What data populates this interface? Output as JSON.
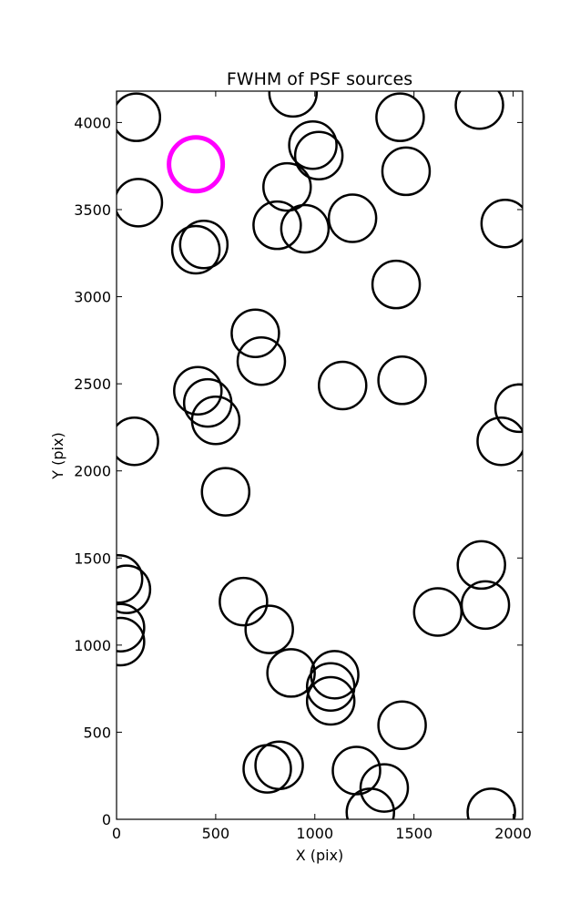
{
  "chart_data": {
    "type": "scatter",
    "title": "FWHM of PSF sources",
    "xlabel": "X (pix)",
    "ylabel": "Y (pix)",
    "xlim": [
      0,
      2048
    ],
    "ylim": [
      0,
      4180
    ],
    "xticks": [
      0,
      500,
      1000,
      1500,
      2000
    ],
    "yticks": [
      0,
      500,
      1000,
      1500,
      2000,
      2500,
      3000,
      3500,
      4000
    ],
    "grid": false,
    "colors": {
      "sources": "#000000",
      "highlight": "#ff00ff"
    },
    "series": [
      {
        "marker": "circle",
        "color": "#000000",
        "points": [
          {
            "x": 100,
            "y": 4030
          },
          {
            "x": 890,
            "y": 4170
          },
          {
            "x": 990,
            "y": 3870
          },
          {
            "x": 1020,
            "y": 3810
          },
          {
            "x": 1430,
            "y": 4030
          },
          {
            "x": 1830,
            "y": 4100
          },
          {
            "x": 110,
            "y": 3540
          },
          {
            "x": 860,
            "y": 3630
          },
          {
            "x": 1460,
            "y": 3720
          },
          {
            "x": 810,
            "y": 3410
          },
          {
            "x": 950,
            "y": 3390
          },
          {
            "x": 1190,
            "y": 3450
          },
          {
            "x": 1960,
            "y": 3420
          },
          {
            "x": 440,
            "y": 3300
          },
          {
            "x": 400,
            "y": 3270
          },
          {
            "x": 1410,
            "y": 3070
          },
          {
            "x": 700,
            "y": 2790
          },
          {
            "x": 730,
            "y": 2630
          },
          {
            "x": 410,
            "y": 2460
          },
          {
            "x": 460,
            "y": 2390
          },
          {
            "x": 500,
            "y": 2290
          },
          {
            "x": 1140,
            "y": 2490
          },
          {
            "x": 1440,
            "y": 2520
          },
          {
            "x": 2030,
            "y": 2360
          },
          {
            "x": 90,
            "y": 2170
          },
          {
            "x": 1940,
            "y": 2170
          },
          {
            "x": 550,
            "y": 1880
          },
          {
            "x": 10,
            "y": 1380
          },
          {
            "x": 50,
            "y": 1320
          },
          {
            "x": 1840,
            "y": 1460
          },
          {
            "x": 640,
            "y": 1250
          },
          {
            "x": 1620,
            "y": 1190
          },
          {
            "x": 1860,
            "y": 1230
          },
          {
            "x": 20,
            "y": 1100
          },
          {
            "x": 20,
            "y": 1020
          },
          {
            "x": 770,
            "y": 1090
          },
          {
            "x": 880,
            "y": 840
          },
          {
            "x": 1100,
            "y": 830
          },
          {
            "x": 1080,
            "y": 760
          },
          {
            "x": 1080,
            "y": 680
          },
          {
            "x": 1440,
            "y": 540
          },
          {
            "x": 760,
            "y": 290
          },
          {
            "x": 820,
            "y": 310
          },
          {
            "x": 1210,
            "y": 280
          },
          {
            "x": 1350,
            "y": 180
          },
          {
            "x": 1280,
            "y": 40
          },
          {
            "x": 1890,
            "y": 40
          }
        ]
      },
      {
        "marker": "circle",
        "color": "#ff00ff",
        "points": [
          {
            "x": 400,
            "y": 3760
          }
        ]
      }
    ]
  }
}
